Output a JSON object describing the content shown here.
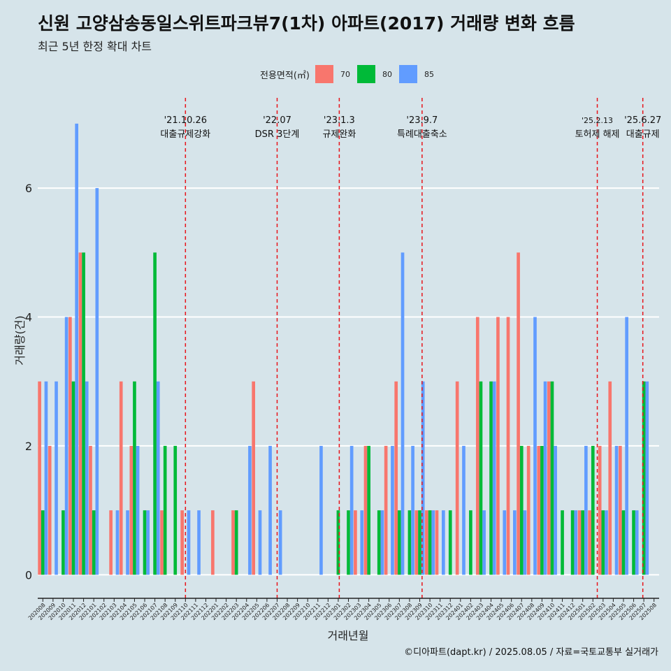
{
  "header": {
    "title": "신원 고양삼송동일스위트파크뷰7(1차) 아파트(2017) 거래량 변화 흐름",
    "subtitle": "최근 5년 한정 확대 차트"
  },
  "legend": {
    "title": "전용면적(㎡)",
    "items": [
      {
        "label": "70",
        "color": "#f8766d"
      },
      {
        "label": "80",
        "color": "#00ba38"
      },
      {
        "label": "85",
        "color": "#619cff"
      }
    ]
  },
  "caption": "©디아파트(dapt.kr) / 2025.08.05 / 자료=국토교통부 실거래가",
  "chart_data": {
    "type": "bar",
    "title": "신원 고양삼송동일스위트파크뷰7(1차) 아파트(2017) 거래량 변화 흐름",
    "subtitle": "최근 5년 한정 확대 차트",
    "xlabel": "거래년월",
    "ylabel": "거래량(건)",
    "ylim": [
      -0.3,
      7.4
    ],
    "yticks": [
      0,
      2,
      4,
      6
    ],
    "grid": true,
    "legend_position": "top",
    "categories": [
      "202008",
      "202009",
      "202010",
      "202011",
      "202012",
      "202101",
      "202102",
      "202103",
      "202104",
      "202105",
      "202106",
      "202107",
      "202108",
      "202109",
      "202110",
      "202111",
      "202112",
      "202201",
      "202202",
      "202203",
      "202204",
      "202205",
      "202206",
      "202207",
      "202208",
      "202209",
      "202210",
      "202211",
      "202212",
      "202301",
      "202302",
      "202303",
      "202304",
      "202305",
      "202306",
      "202307",
      "202308",
      "202309",
      "202310",
      "202311",
      "202312",
      "202401",
      "202402",
      "202403",
      "202404",
      "202405",
      "202406",
      "202407",
      "202408",
      "202409",
      "202410",
      "202411",
      "202412",
      "202501",
      "202502",
      "202503",
      "202504",
      "202505",
      "202506",
      "202507",
      "202508"
    ],
    "series": [
      {
        "name": "70",
        "color": "#f8766d",
        "values": [
          3,
          2,
          0,
          4,
          5,
          2,
          0,
          1,
          3,
          2,
          0,
          0,
          1,
          0,
          1,
          0,
          0,
          1,
          0,
          1,
          0,
          3,
          0,
          0,
          0,
          0,
          0,
          0,
          0,
          0,
          0,
          1,
          2,
          0,
          2,
          3,
          0,
          1,
          1,
          1,
          0,
          3,
          0,
          4,
          0,
          4,
          4,
          5,
          2,
          2,
          3,
          0,
          0,
          1,
          1,
          2,
          3,
          2,
          0,
          0,
          0
        ]
      },
      {
        "name": "80",
        "color": "#00ba38",
        "values": [
          1,
          0,
          1,
          3,
          5,
          1,
          0,
          0,
          0,
          3,
          1,
          5,
          2,
          2,
          0,
          0,
          0,
          0,
          0,
          1,
          0,
          0,
          0,
          0,
          0,
          0,
          0,
          0,
          0,
          1,
          1,
          0,
          2,
          1,
          0,
          1,
          1,
          1,
          1,
          0,
          1,
          0,
          1,
          3,
          3,
          0,
          0,
          2,
          0,
          2,
          3,
          1,
          1,
          1,
          2,
          1,
          0,
          1,
          1,
          3,
          0
        ]
      },
      {
        "name": "85",
        "color": "#619cff",
        "values": [
          3,
          3,
          4,
          7,
          3,
          6,
          0,
          1,
          1,
          2,
          1,
          3,
          0,
          0,
          1,
          1,
          0,
          0,
          0,
          0,
          2,
          1,
          2,
          1,
          0,
          0,
          0,
          2,
          0,
          0,
          2,
          1,
          0,
          1,
          2,
          5,
          2,
          3,
          1,
          1,
          0,
          2,
          0,
          1,
          3,
          1,
          1,
          1,
          4,
          3,
          2,
          0,
          1,
          2,
          0,
          1,
          2,
          4,
          1,
          3,
          0
        ]
      }
    ],
    "annotations": [
      {
        "after": "202110",
        "at": 0.0,
        "date": "'21.10.26",
        "label": "대출규제강화"
      },
      {
        "after": "202207",
        "at": 0.0,
        "date": "'22.07",
        "label": "DSR 3단계"
      },
      {
        "after": "202301",
        "at": 0.1,
        "date": "'23.1.3",
        "label": "규제완화"
      },
      {
        "after": "202309",
        "at": 0.23,
        "date": "'23.9.7",
        "label": "특례대출축소"
      },
      {
        "after": "202502",
        "at": 0.43,
        "date": "'25.2.13",
        "label": "토허제 해제"
      },
      {
        "after": "202506",
        "at": 0.9,
        "date": "'25.6.27",
        "label": "대출규제"
      }
    ]
  }
}
